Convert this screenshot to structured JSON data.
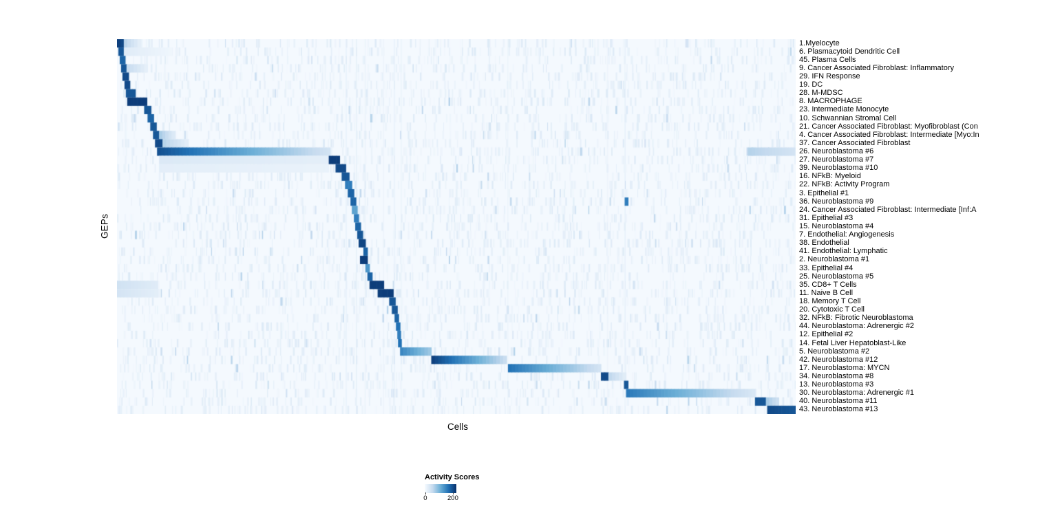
{
  "figure": {
    "xlabel": "Cells",
    "ylabel": "GEPs"
  },
  "legend": {
    "title": "Activity Scores",
    "ticks": [
      {
        "label": "0",
        "pos": 0.02
      },
      {
        "label": "200",
        "pos": 0.89
      }
    ]
  },
  "chart_data": {
    "type": "heatmap",
    "title": "",
    "xlabel": "Cells",
    "ylabel": "GEPs",
    "legend_title": "Activity Scores",
    "value_range": [
      0,
      200
    ],
    "colormap": "Blues",
    "colormap_stops": [
      [
        "0",
        "#f7fbff"
      ],
      [
        "0.25",
        "#c6dbef"
      ],
      [
        "0.5",
        "#6baed6"
      ],
      [
        "0.75",
        "#2171b5"
      ],
      [
        "1",
        "#08306b"
      ]
    ],
    "noise_seed": 42,
    "noise_per_row": 130,
    "vertical_streaks": [
      [
        0.337,
        0.1
      ],
      [
        0.352,
        0.12
      ],
      [
        0.365,
        0.08
      ],
      [
        0.392,
        0.07
      ],
      [
        0.408,
        0.1
      ],
      [
        0.418,
        0.08
      ],
      [
        0.575,
        0.06
      ],
      [
        0.722,
        0.06
      ],
      [
        0.748,
        0.1
      ]
    ],
    "rows": [
      {
        "label": "1.Myelocyte",
        "segments": [
          [
            0.0,
            0.01,
            0.95,
            0.9
          ],
          [
            0.01,
            0.035,
            0.3,
            0.08
          ]
        ]
      },
      {
        "label": "6. Plasmacytoid Dendritic Cell",
        "segments": [
          [
            0.002,
            0.01,
            0.85,
            0.85
          ],
          [
            0.01,
            0.08,
            0.12,
            0.04
          ]
        ]
      },
      {
        "label": "45. Plasma Cells",
        "segments": [
          [
            0.004,
            0.012,
            0.8,
            0.8
          ]
        ]
      },
      {
        "label": "9. Cancer Associated Fibroblast: Inflammatory",
        "segments": [
          [
            0.006,
            0.014,
            0.85,
            0.85
          ],
          [
            0.014,
            0.045,
            0.25,
            0.08
          ]
        ]
      },
      {
        "label": "29. IFN Response",
        "segments": [
          [
            0.008,
            0.017,
            0.9,
            0.9
          ]
        ]
      },
      {
        "label": "19. DC",
        "segments": [
          [
            0.011,
            0.019,
            0.9,
            0.9
          ]
        ]
      },
      {
        "label": "28. M-MDSC",
        "segments": [
          [
            0.013,
            0.027,
            0.85,
            0.85
          ]
        ]
      },
      {
        "label": "8. MACROPHAGE",
        "segments": [
          [
            0.015,
            0.044,
            0.95,
            0.95
          ]
        ]
      },
      {
        "label": "23. Intermediate Monocyte",
        "segments": [
          [
            0.04,
            0.05,
            0.85,
            0.85
          ]
        ]
      },
      {
        "label": "10. Schwannian Stromal Cell",
        "segments": [
          [
            0.045,
            0.054,
            0.8,
            0.8
          ]
        ]
      },
      {
        "label": "21. Cancer Associated Fibroblast: Myofibroblast (Con",
        "segments": [
          [
            0.049,
            0.058,
            0.85,
            0.85
          ]
        ]
      },
      {
        "label": "4. Cancer Associated Fibroblast: Intermediate [Myo:In",
        "segments": [
          [
            0.053,
            0.062,
            0.85,
            0.85
          ],
          [
            0.062,
            0.085,
            0.35,
            0.12
          ]
        ]
      },
      {
        "label": "37. Cancer Associated Fibroblast",
        "segments": [
          [
            0.056,
            0.067,
            0.9,
            0.9
          ],
          [
            0.067,
            0.105,
            0.3,
            0.1
          ]
        ]
      },
      {
        "label": "26. Neuroblastoma #6",
        "segments": [
          [
            0.059,
            0.314,
            0.88,
            0.18
          ],
          [
            0.93,
            0.999,
            0.3,
            0.18
          ]
        ]
      },
      {
        "label": "27. Neuroblastoma #7",
        "segments": [
          [
            0.062,
            0.31,
            0.14,
            0.1
          ],
          [
            0.312,
            0.328,
            0.95,
            0.95
          ]
        ]
      },
      {
        "label": "39. Neuroblastoma #10",
        "segments": [
          [
            0.062,
            0.31,
            0.1,
            0.07
          ],
          [
            0.322,
            0.337,
            0.9,
            0.9
          ]
        ]
      },
      {
        "label": "16. NFkB: Myeloid",
        "segments": [
          [
            0.331,
            0.342,
            0.85,
            0.85
          ]
        ]
      },
      {
        "label": "22. NFkB: Activity Program",
        "segments": [
          [
            0.336,
            0.346,
            0.7,
            0.7
          ]
        ]
      },
      {
        "label": "3. Epithelial #1",
        "segments": [
          [
            0.34,
            0.349,
            0.8,
            0.8
          ]
        ]
      },
      {
        "label": "36. Neuroblastoma #9",
        "segments": [
          [
            0.344,
            0.352,
            0.8,
            0.8
          ],
          [
            0.748,
            0.753,
            0.7,
            0.7
          ]
        ]
      },
      {
        "label": "24. Cancer Associated Fibroblast: Intermediate [Inf:A",
        "segments": [
          [
            0.346,
            0.354,
            0.55,
            0.55
          ]
        ]
      },
      {
        "label": "31. Epithelial #3",
        "segments": [
          [
            0.349,
            0.356,
            0.7,
            0.7
          ]
        ]
      },
      {
        "label": "15. Neuroblastoma #4",
        "segments": [
          [
            0.351,
            0.359,
            0.8,
            0.8
          ]
        ]
      },
      {
        "label": "7. Endothelial: Angiogenesis",
        "segments": [
          [
            0.354,
            0.362,
            0.85,
            0.85
          ]
        ]
      },
      {
        "label": "38. Endothelial",
        "segments": [
          [
            0.356,
            0.366,
            0.92,
            0.92
          ]
        ]
      },
      {
        "label": "41. Endothelial: Lymphatic",
        "segments": [
          [
            0.363,
            0.369,
            0.8,
            0.8
          ]
        ]
      },
      {
        "label": "2. Neuroblastoma #1",
        "segments": [
          [
            0.358,
            0.369,
            0.95,
            0.95
          ]
        ]
      },
      {
        "label": "33. Epithelial #4",
        "segments": [
          [
            0.366,
            0.372,
            0.6,
            0.6
          ]
        ]
      },
      {
        "label": "25. Neuroblastoma #5",
        "segments": [
          [
            0.369,
            0.376,
            0.8,
            0.8
          ]
        ]
      },
      {
        "label": "35. CD8+ T Cells",
        "segments": [
          [
            0.0,
            0.06,
            0.2,
            0.12
          ],
          [
            0.372,
            0.393,
            0.95,
            0.95
          ]
        ]
      },
      {
        "label": "11. Naive B Cell",
        "segments": [
          [
            0.0,
            0.06,
            0.18,
            0.1
          ],
          [
            0.384,
            0.407,
            0.95,
            0.95
          ]
        ]
      },
      {
        "label": "18. Memory T Cell",
        "segments": [
          [
            0.401,
            0.41,
            0.85,
            0.85
          ]
        ]
      },
      {
        "label": "20. Cytotoxic T Cell",
        "segments": [
          [
            0.405,
            0.413,
            0.85,
            0.85
          ]
        ]
      },
      {
        "label": "32. NFkB: Fibrotic Neuroblastoma",
        "segments": [
          [
            0.409,
            0.415,
            0.8,
            0.8
          ]
        ]
      },
      {
        "label": "44. Neuroblastoma: Adrenergic #2",
        "segments": [
          [
            0.411,
            0.417,
            0.75,
            0.75
          ]
        ]
      },
      {
        "label": "12. Epithelial #2",
        "segments": [
          [
            0.413,
            0.418,
            0.7,
            0.7
          ]
        ]
      },
      {
        "label": "14. Fetal Liver Hepatoblast-Like",
        "segments": [
          [
            0.414,
            0.419,
            0.75,
            0.75
          ]
        ]
      },
      {
        "label": "5. Neuroblastoma #2",
        "segments": [
          [
            0.417,
            0.463,
            0.68,
            0.35
          ]
        ]
      },
      {
        "label": "42. Neuroblastoma #12",
        "segments": [
          [
            0.463,
            0.574,
            0.95,
            0.22
          ]
        ]
      },
      {
        "label": "17. Neuroblastoma: MYCN",
        "segments": [
          [
            0.576,
            0.713,
            0.75,
            0.18
          ]
        ]
      },
      {
        "label": "34. Neuroblastoma #8",
        "segments": [
          [
            0.713,
            0.724,
            0.9,
            0.9
          ],
          [
            0.724,
            0.75,
            0.28,
            0.1
          ]
        ]
      },
      {
        "label": "13. Neuroblastoma #3",
        "segments": [
          [
            0.747,
            0.753,
            0.85,
            0.85
          ]
        ]
      },
      {
        "label": "30. Neuroblastoma: Adrenergic #1",
        "segments": [
          [
            0.75,
            0.94,
            0.72,
            0.15
          ]
        ]
      },
      {
        "label": "40. Neuroblastoma #11",
        "segments": [
          [
            0.94,
            0.956,
            0.85,
            0.85
          ],
          [
            0.956,
            0.975,
            0.35,
            0.2
          ]
        ]
      },
      {
        "label": "43. Neuroblastoma #13",
        "segments": [
          [
            0.958,
            1.0,
            0.9,
            0.85
          ]
        ]
      }
    ]
  }
}
